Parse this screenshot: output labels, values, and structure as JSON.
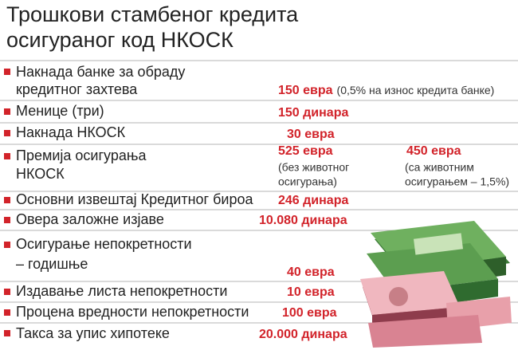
{
  "title": {
    "lines": [
      "Трошкови стамбеног кредита",
      "осигураног код НКОСК"
    ]
  },
  "items": [
    {
      "label": [
        "Накнада банке за обраду",
        "кредитног захтева"
      ],
      "cost": "150 евра",
      "note": "(0,5% на износ кредита банке)"
    },
    {
      "label": [
        "Менице (три)"
      ],
      "cost": "150 динара"
    },
    {
      "label": [
        "Накнада НКОСК"
      ],
      "cost": "30 евра"
    },
    {
      "label": [
        "Премија осигурања",
        "НКОСК"
      ],
      "options": [
        {
          "cost": "525 евра",
          "note": [
            "(без животног",
            "осигурања)"
          ]
        },
        {
          "cost": "450 евра",
          "note": [
            "(са животним",
            "осигурањем – 1,5%)"
          ]
        }
      ]
    },
    {
      "label": [
        "Основни извештај Кредитног бироа"
      ],
      "cost": "246 динара"
    },
    {
      "label": [
        "Овера заложне изјаве"
      ],
      "cost": "10.080 динара"
    },
    {
      "label": [
        "Осигурање непокретности",
        "– годишње"
      ],
      "cost": "40 евра"
    },
    {
      "label": [
        "Издавање листа непокретности"
      ],
      "cost": "10 евра"
    },
    {
      "label": [
        "Процена вредности непокретности"
      ],
      "cost": "100 евра"
    },
    {
      "label": [
        "Такса за упис хипотеке"
      ],
      "cost": "20.000 динара"
    }
  ]
}
